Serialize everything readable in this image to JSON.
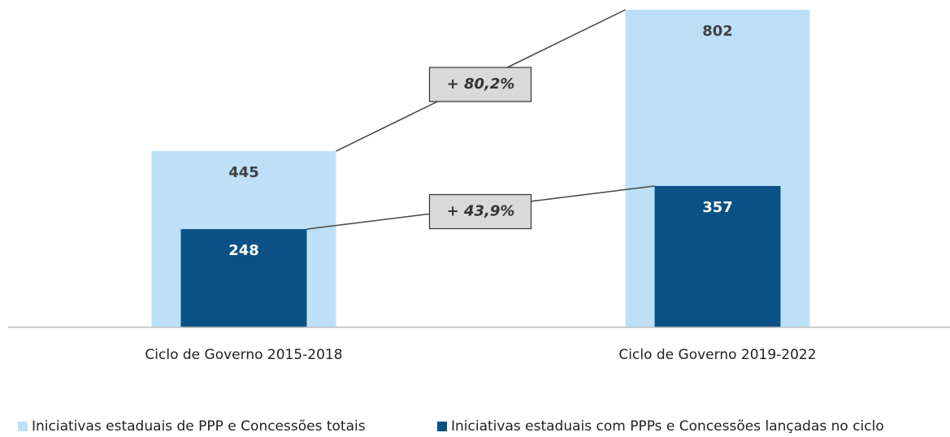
{
  "chart_data": {
    "type": "overlap-bar",
    "categories": [
      "Ciclo de Governo 2015-2018",
      "Ciclo de Governo 2019-2022"
    ],
    "series": [
      {
        "name": "Iniciativas estaduais de PPP e Concessões totais",
        "color": "#bde0f8",
        "values": [
          445,
          802
        ]
      },
      {
        "name": "Iniciativas estaduais com PPPs e Concessões lançadas no ciclo",
        "color": "#0b5186",
        "values": [
          248,
          357
        ]
      }
    ],
    "annotations": [
      "+ 80,2%",
      "+ 43,9%"
    ],
    "ylim": [
      0,
      802
    ],
    "legend": "bottom"
  }
}
